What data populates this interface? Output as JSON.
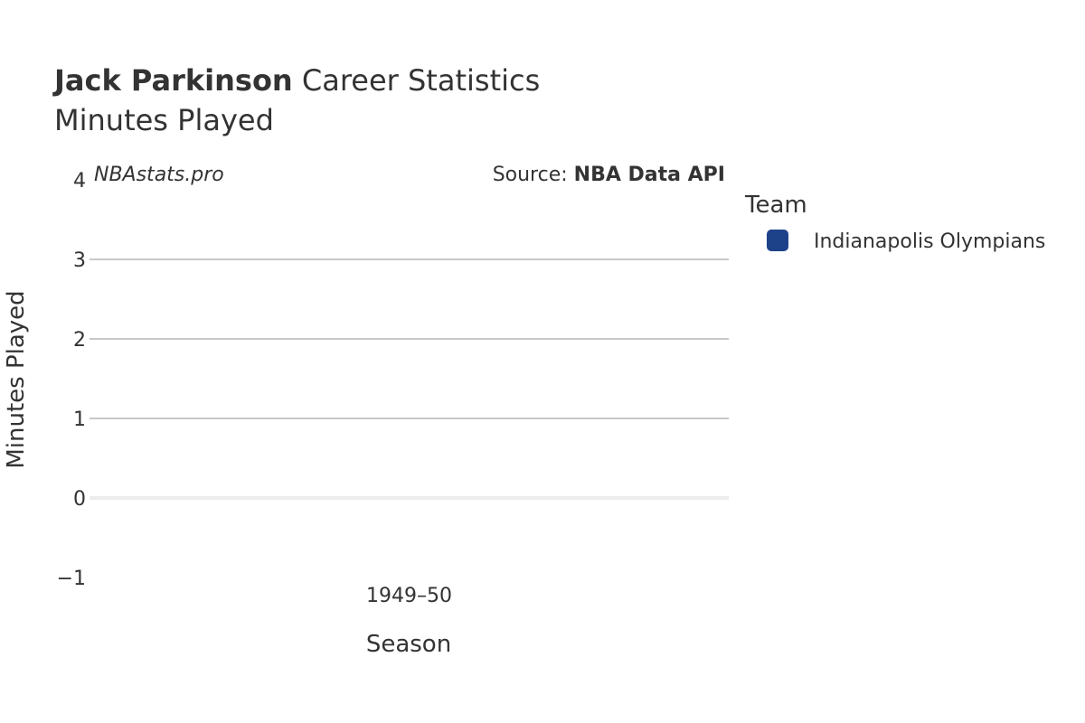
{
  "header": {
    "player_name": "Jack Parkinson",
    "title_rest": " Career Statistics",
    "subtitle": "Minutes Played"
  },
  "watermark": "NBAstats.pro",
  "source": {
    "prefix": "Source: ",
    "name": "NBA Data API"
  },
  "legend": {
    "title": "Team",
    "items": [
      {
        "label": "Indianapolis Olympians",
        "color": "#1d428a"
      }
    ]
  },
  "chart_data": {
    "type": "bar",
    "title": "Jack Parkinson Career Statistics",
    "subtitle": "Minutes Played",
    "xlabel": "Season",
    "ylabel": "Minutes Played",
    "categories": [
      "1949–50"
    ],
    "series": [
      {
        "name": "Indianapolis Olympians",
        "values": [
          0
        ],
        "color": "#1d428a"
      }
    ],
    "ylim": [
      -1,
      4
    ],
    "yticks": [
      4,
      3,
      2,
      1,
      0,
      -1
    ],
    "ytick_labels": [
      "4",
      "3",
      "2",
      "1",
      "0",
      "−1"
    ],
    "grid": true,
    "legend_position": "right"
  }
}
